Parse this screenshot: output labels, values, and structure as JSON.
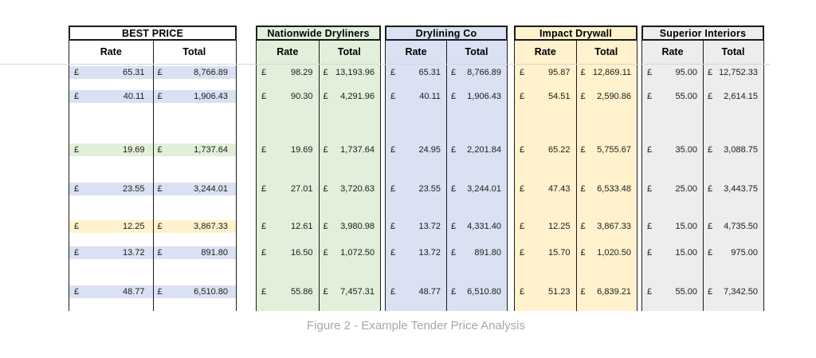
{
  "page": {
    "caption": "Figure 2 - Example Tender Price Analysis",
    "background": "#ffffff"
  },
  "columns": {
    "rate": "Rate",
    "total": "Total"
  },
  "currency": "£",
  "highlight_colors": {
    "blue": "#D9E1F2",
    "green": "#E2EFDA",
    "yellow": "#FFF2CC"
  },
  "tables": [
    {
      "name": "best-price",
      "title": "BEST PRICE",
      "tint": "#FFFFFF",
      "rows": [
        {
          "rate": "65.31",
          "total": "8,766.89",
          "highlight": "blue"
        },
        {
          "rate": "40.11",
          "total": "1,906.43",
          "highlight": "blue"
        },
        {
          "rate": "19.69",
          "total": "1,737.64",
          "highlight": "green"
        },
        {
          "rate": "23.55",
          "total": "3,244.01",
          "highlight": "blue"
        },
        {
          "rate": "12.25",
          "total": "3,867.33",
          "highlight": "yellow"
        },
        {
          "rate": "13.72",
          "total": "891.80",
          "highlight": "blue"
        },
        {
          "rate": "48.77",
          "total": "6,510.80",
          "highlight": "blue"
        }
      ]
    },
    {
      "name": "nationwide-dryliners",
      "title": "Nationwide Dryliners",
      "tint": "#E2EFDA",
      "rows": [
        {
          "rate": "98.29",
          "total": "13,193.96"
        },
        {
          "rate": "90.30",
          "total": "4,291.96"
        },
        {
          "rate": "19.69",
          "total": "1,737.64"
        },
        {
          "rate": "27.01",
          "total": "3,720.63"
        },
        {
          "rate": "12.61",
          "total": "3,980.98"
        },
        {
          "rate": "16.50",
          "total": "1,072.50"
        },
        {
          "rate": "55.86",
          "total": "7,457.31"
        }
      ]
    },
    {
      "name": "drylining-co",
      "title": "Drylining Co",
      "tint": "#D9E1F2",
      "rows": [
        {
          "rate": "65.31",
          "total": "8,766.89"
        },
        {
          "rate": "40.11",
          "total": "1,906.43"
        },
        {
          "rate": "24.95",
          "total": "2,201.84"
        },
        {
          "rate": "23.55",
          "total": "3,244.01"
        },
        {
          "rate": "13.72",
          "total": "4,331.40"
        },
        {
          "rate": "13.72",
          "total": "891.80"
        },
        {
          "rate": "48.77",
          "total": "6,510.80"
        }
      ]
    },
    {
      "name": "impact-drywall",
      "title": "Impact Drywall",
      "tint": "#FFF2CC",
      "rows": [
        {
          "rate": "95.87",
          "total": "12,869.11"
        },
        {
          "rate": "54.51",
          "total": "2,590.86"
        },
        {
          "rate": "65.22",
          "total": "5,755.67"
        },
        {
          "rate": "47.43",
          "total": "6,533.48"
        },
        {
          "rate": "12.25",
          "total": "3,867.33"
        },
        {
          "rate": "15.70",
          "total": "1,020.50"
        },
        {
          "rate": "51.23",
          "total": "6,839.21"
        }
      ]
    },
    {
      "name": "superior-interiors",
      "title": "Superior Interiors",
      "tint": "#EDEDED",
      "rows": [
        {
          "rate": "95.00",
          "total": "12,752.33"
        },
        {
          "rate": "55.00",
          "total": "2,614.15"
        },
        {
          "rate": "35.00",
          "total": "3,088.75"
        },
        {
          "rate": "25.00",
          "total": "3,443.75"
        },
        {
          "rate": "15.00",
          "total": "4,735.50"
        },
        {
          "rate": "15.00",
          "total": "975.00"
        },
        {
          "rate": "55.00",
          "total": "7,342.50"
        }
      ]
    }
  ]
}
